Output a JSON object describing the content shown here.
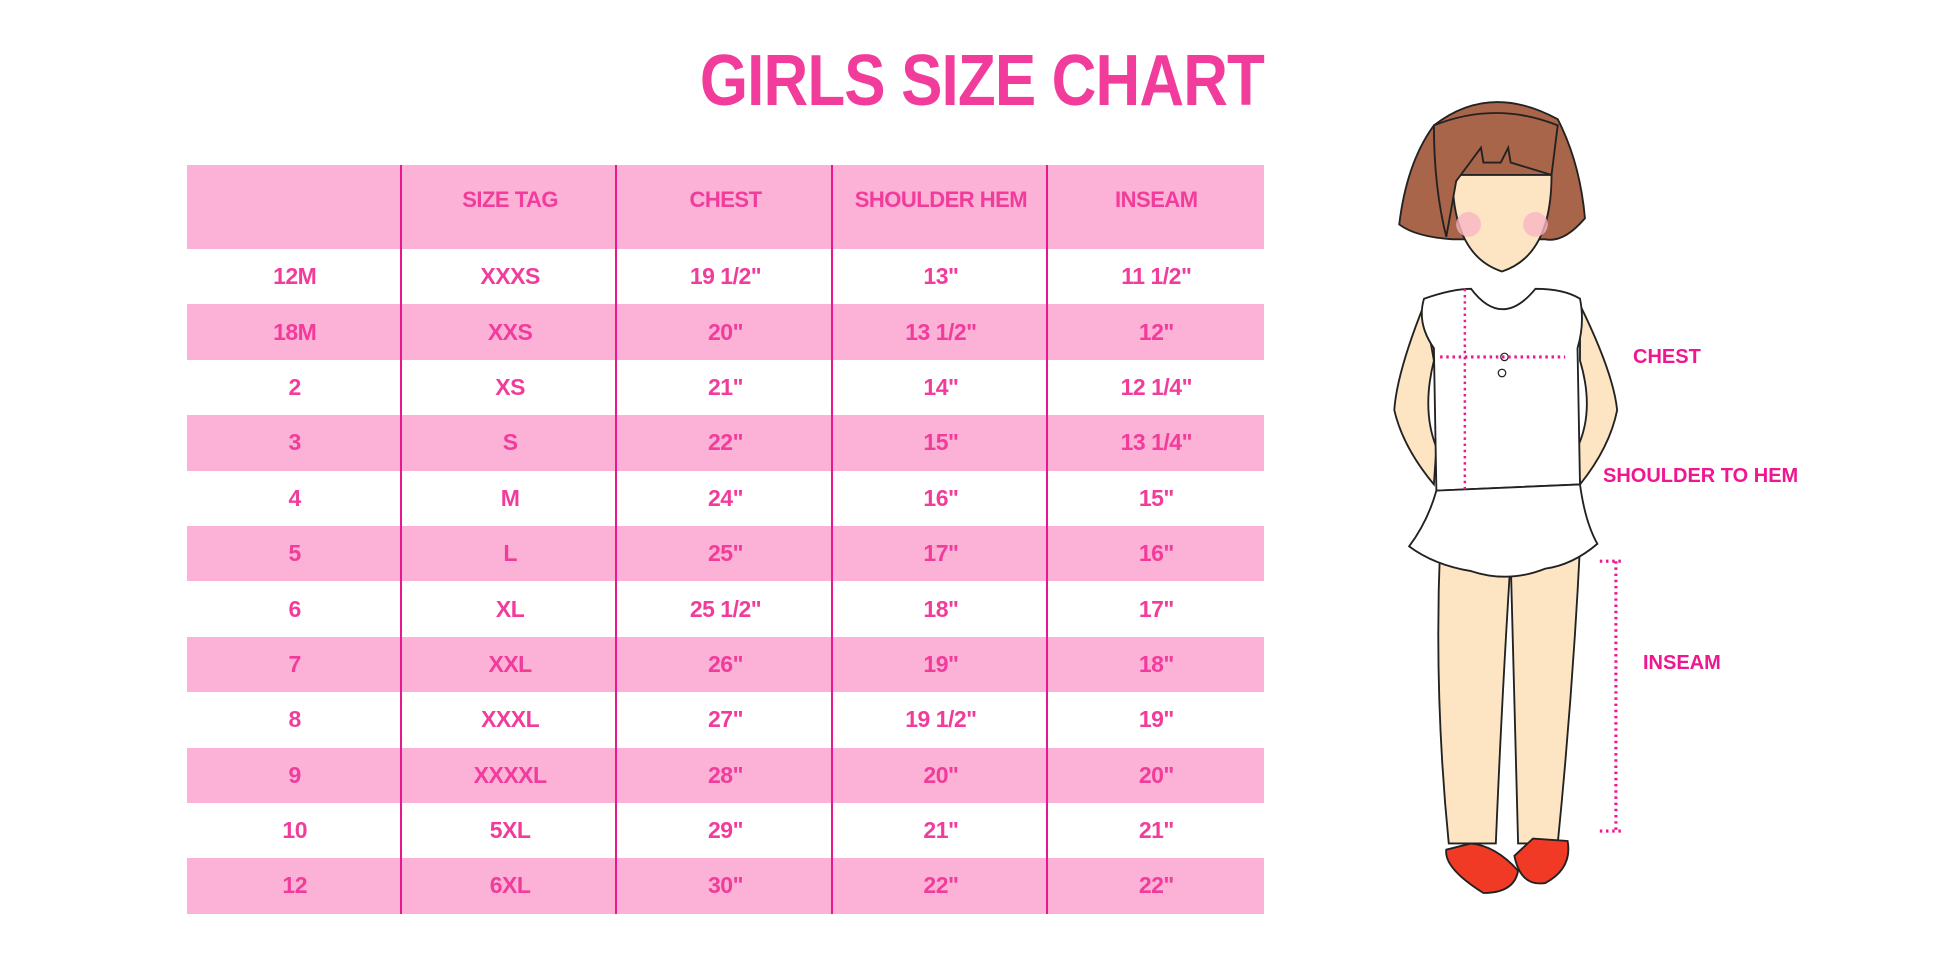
{
  "title": "GIRLS SIZE CHART",
  "colors": {
    "accent": "#f23c9b",
    "row_pink": "#fcb1d6",
    "divider": "#e8168f"
  },
  "table": {
    "headers": [
      "",
      "SIZE TAG",
      "CHEST",
      "SHOULDER HEM",
      "INSEAM"
    ],
    "rows": [
      [
        "12M",
        "XXXS",
        "19 1/2\"",
        "13\"",
        "11 1/2\""
      ],
      [
        "18M",
        "XXS",
        "20\"",
        "13 1/2\"",
        "12\""
      ],
      [
        "2",
        "XS",
        "21\"",
        "14\"",
        "12 1/4\""
      ],
      [
        "3",
        "S",
        "22\"",
        "15\"",
        "13 1/4\""
      ],
      [
        "4",
        "M",
        "24\"",
        "16\"",
        "15\""
      ],
      [
        "5",
        "L",
        "25\"",
        "17\"",
        "16\""
      ],
      [
        "6",
        "XL",
        "25 1/2\"",
        "18\"",
        "17\""
      ],
      [
        "7",
        "XXL",
        "26\"",
        "19\"",
        "18\""
      ],
      [
        "8",
        "XXXL",
        "27\"",
        "19 1/2\"",
        "19\""
      ],
      [
        "9",
        "XXXXL",
        "28\"",
        "20\"",
        "20\""
      ],
      [
        "10",
        "5XL",
        "29\"",
        "21\"",
        "21\""
      ],
      [
        "12",
        "6XL",
        "30\"",
        "22\"",
        "22\""
      ]
    ]
  },
  "figure": {
    "labels": {
      "chest": "CHEST",
      "shoulder_to_hem": "SHOULDER TO HEM",
      "inseam": "INSEAM"
    }
  }
}
